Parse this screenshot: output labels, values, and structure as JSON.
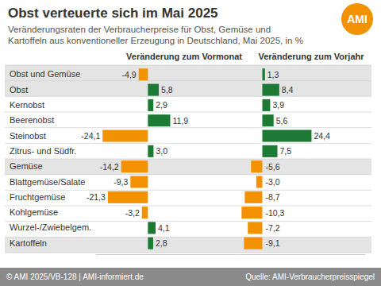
{
  "header": {
    "title": "Obst verteuerte sich im Mai 2025",
    "subtitle": [
      "Veränderungsraten der Verbraucherpreise für Obst, Gemüse und",
      "Kartoffeln aus konventioneller Erzeugung in Deutschland, Mai 2025, in %"
    ],
    "logo": "AMI"
  },
  "footer": {
    "copyright": "© AMI 2025/VB-128 | AMI-informiert.de",
    "source": "Quelle: AMI-Verbraucherpreisspiegel"
  },
  "chart_data": [
    {
      "type": "bar",
      "orientation": "horizontal",
      "title": "Veränderung zum Vormonat",
      "categories": [
        "Obst und Gemüse",
        "Obst",
        "Kernobst",
        "Beerenobst",
        "Steinobst",
        "Zitrus- und Südfr.",
        "Gemüse",
        "Blattgemüse/Salate",
        "Fruchtgemüse",
        "Kohlgemüse",
        "Wurzel-/Zwiebelgem.",
        "Kartoffeln"
      ],
      "values": [
        -4.9,
        5.8,
        2.9,
        11.9,
        -24.1,
        3.0,
        -14.2,
        -9.3,
        -21.3,
        -3.2,
        4.1,
        2.8
      ],
      "value_labels": [
        "-4,9",
        "5,8",
        "2,9",
        "11,9",
        "-24,1",
        "3,0",
        "-14,2",
        "-9,3",
        "-21,3",
        "-3,2",
        "4,1",
        "2,8"
      ],
      "colors": [
        "#f39200",
        "#1d7a34",
        "#1d7a34",
        "#1d7a34",
        "#f39200",
        "#1d7a34",
        "#f39200",
        "#f39200",
        "#f39200",
        "#f39200",
        "#1d7a34",
        "#1d7a34"
      ],
      "xlim": [
        -28,
        48
      ],
      "data_labels": true,
      "tick_labels": "y"
    },
    {
      "type": "bar",
      "orientation": "horizontal",
      "title": "Veränderung zum Vorjahr",
      "categories": [
        "Obst und Gemüse",
        "Obst",
        "Kernobst",
        "Beerenobst",
        "Steinobst",
        "Zitrus- und Südfr.",
        "Gemüse",
        "Blattgemüse/Salate",
        "Fruchtgemüse",
        "Kohlgemüse",
        "Wurzel-/Zwiebelgem.",
        "Kartoffeln"
      ],
      "values": [
        1.3,
        8.4,
        3.9,
        5.6,
        24.4,
        7.5,
        -5.6,
        -3.0,
        -8.7,
        -10.3,
        -7.2,
        -9.1
      ],
      "value_labels": [
        "1,3",
        "8,4",
        "3,9",
        "5,6",
        "24,4",
        "7,5",
        "-5,6",
        "-3,0",
        "-8,7",
        "-10,3",
        "-7,2",
        "-9,1"
      ],
      "colors": [
        "#1d7a34",
        "#1d7a34",
        "#1d7a34",
        "#1d7a34",
        "#1d7a34",
        "#1d7a34",
        "#f39200",
        "#f39200",
        "#f39200",
        "#f39200",
        "#f39200",
        "#f39200"
      ],
      "xlim": [
        -12,
        51
      ],
      "data_labels": true,
      "tick_labels": false
    }
  ]
}
